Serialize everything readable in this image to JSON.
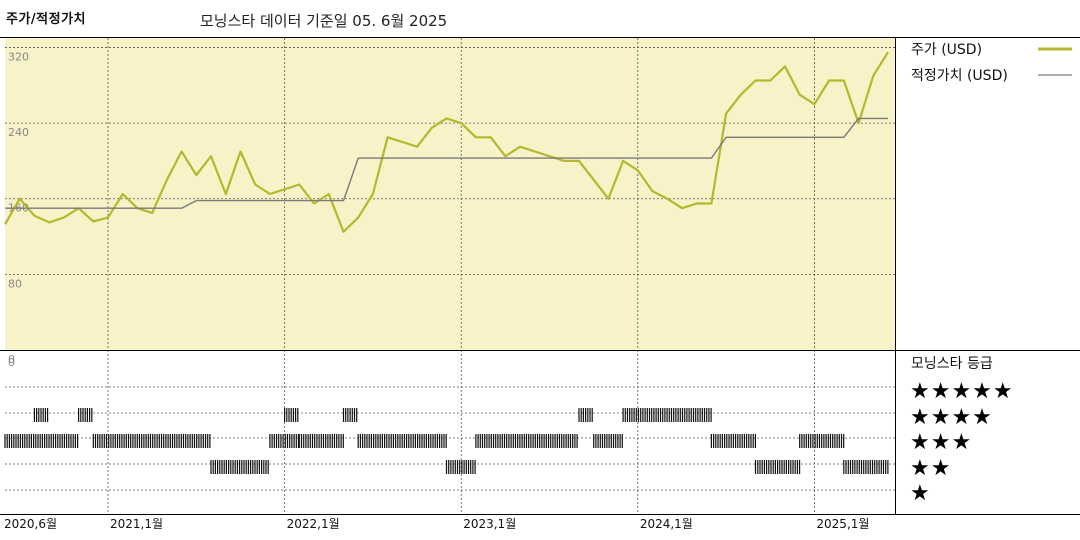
{
  "header": {
    "title": "주가/적정가치",
    "subtitle": "모닝스타 데이터 기준일 05. 6월 2025"
  },
  "legend": {
    "price_label": "주가 (USD)",
    "fair_label": "적정가치 (USD)",
    "rating_title": "모닝스타 등급"
  },
  "colors": {
    "price": "#b5b82c",
    "fair": "#7a7a7a",
    "panel_bg": "#f8f2c8",
    "grid": "#555555"
  },
  "chart_data": {
    "type": "line",
    "ylim": [
      0,
      330
    ],
    "yticks": [
      "320",
      "240",
      "160",
      "80",
      "0"
    ],
    "ytick_values": [
      320,
      240,
      160,
      80,
      0
    ],
    "x_tick_labels": [
      "2020,6월",
      "2021,1월",
      "2022,1월",
      "2023,1월",
      "2024,1월",
      "2025,1월"
    ],
    "x_tick_dates": [
      "2020-06",
      "2021-01",
      "2022-01",
      "2023-01",
      "2024-01",
      "2025-01"
    ],
    "x_range": [
      "2020-06",
      "2025-06"
    ],
    "series": [
      {
        "name": "주가 (USD)",
        "x": [
          "2020-06",
          "2020-07",
          "2020-08",
          "2020-09",
          "2020-10",
          "2020-11",
          "2020-12",
          "2021-01",
          "2021-02",
          "2021-03",
          "2021-04",
          "2021-05",
          "2021-06",
          "2021-07",
          "2021-08",
          "2021-09",
          "2021-10",
          "2021-11",
          "2021-12",
          "2022-01",
          "2022-02",
          "2022-03",
          "2022-04",
          "2022-05",
          "2022-06",
          "2022-07",
          "2022-08",
          "2022-09",
          "2022-10",
          "2022-11",
          "2022-12",
          "2023-01",
          "2023-02",
          "2023-03",
          "2023-04",
          "2023-05",
          "2023-06",
          "2023-07",
          "2023-08",
          "2023-09",
          "2023-10",
          "2023-11",
          "2023-12",
          "2024-01",
          "2024-02",
          "2024-03",
          "2024-04",
          "2024-05",
          "2024-06",
          "2024-07",
          "2024-08",
          "2024-09",
          "2024-10",
          "2024-11",
          "2024-12",
          "2025-01",
          "2025-02",
          "2025-03",
          "2025-04",
          "2025-05",
          "2025-06"
        ],
        "y": [
          133,
          160,
          142,
          135,
          140,
          150,
          136,
          140,
          165,
          150,
          145,
          180,
          210,
          185,
          205,
          165,
          210,
          175,
          165,
          170,
          175,
          155,
          165,
          125,
          140,
          165,
          225,
          220,
          215,
          235,
          245,
          240,
          225,
          225,
          205,
          215,
          210,
          205,
          200,
          200,
          180,
          160,
          200,
          190,
          168,
          160,
          150,
          155,
          155,
          250,
          270,
          285,
          285,
          300,
          270,
          260,
          285,
          285,
          240,
          290,
          315
        ]
      },
      {
        "name": "적정가치 (USD)",
        "x": [
          "2020-06",
          "2021-06",
          "2021-07",
          "2022-05",
          "2022-06",
          "2024-06",
          "2024-07",
          "2025-03",
          "2025-04",
          "2025-06"
        ],
        "y": [
          150,
          150,
          158,
          158,
          203,
          203,
          225,
          225,
          245,
          245
        ]
      }
    ]
  },
  "rating_data": {
    "levels": [
      "★★★★★",
      "★★★★",
      "★★★",
      "★★",
      "★"
    ],
    "periods": [
      {
        "start": "2020-06",
        "end": "2020-11",
        "stars": 3
      },
      {
        "start": "2020-08",
        "end": "2020-09",
        "stars": 4
      },
      {
        "start": "2020-11",
        "end": "2020-12",
        "stars": 4
      },
      {
        "start": "2020-12",
        "end": "2021-08",
        "stars": 3
      },
      {
        "start": "2021-08",
        "end": "2021-12",
        "stars": 2
      },
      {
        "start": "2021-12",
        "end": "2022-02",
        "stars": 3
      },
      {
        "start": "2022-01",
        "end": "2022-02",
        "stars": 4
      },
      {
        "start": "2022-02",
        "end": "2022-05",
        "stars": 3
      },
      {
        "start": "2022-05",
        "end": "2022-06",
        "stars": 4
      },
      {
        "start": "2022-06",
        "end": "2022-12",
        "stars": 3
      },
      {
        "start": "2022-12",
        "end": "2023-02",
        "stars": 2
      },
      {
        "start": "2023-02",
        "end": "2023-09",
        "stars": 3
      },
      {
        "start": "2023-09",
        "end": "2023-10",
        "stars": 4
      },
      {
        "start": "2023-10",
        "end": "2023-12",
        "stars": 3
      },
      {
        "start": "2023-12",
        "end": "2024-06",
        "stars": 4
      },
      {
        "start": "2024-06",
        "end": "2024-09",
        "stars": 3
      },
      {
        "start": "2024-09",
        "end": "2024-12",
        "stars": 2
      },
      {
        "start": "2024-12",
        "end": "2025-03",
        "stars": 3
      },
      {
        "start": "2025-03",
        "end": "2025-06",
        "stars": 2
      }
    ]
  }
}
